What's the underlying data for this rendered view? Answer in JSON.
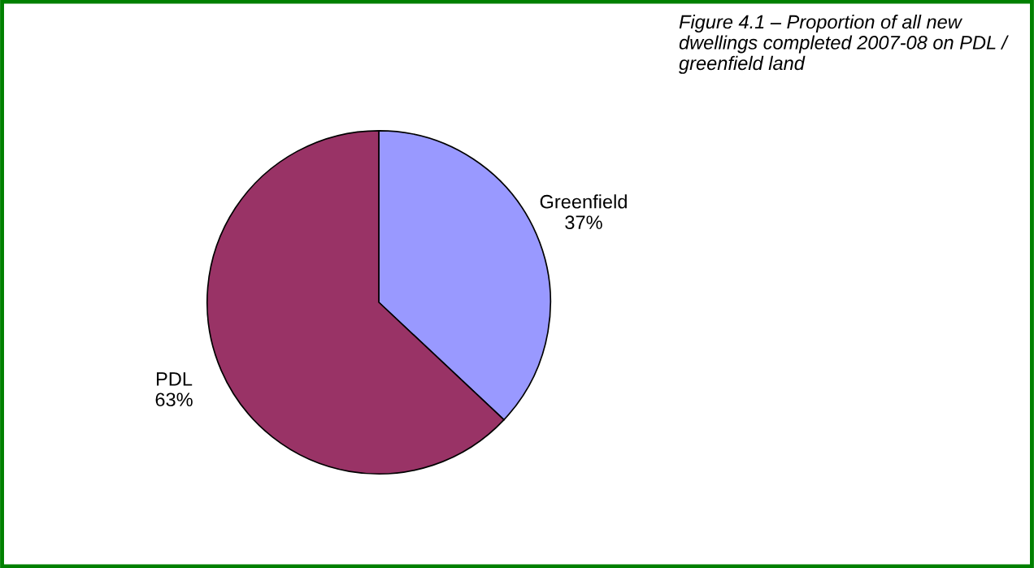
{
  "chart_data": {
    "type": "pie",
    "title": "Figure 4.1 – Proportion of all new dwellings completed 2007-08 on PDL / greenfield land",
    "categories": [
      "Greenfield",
      "PDL"
    ],
    "values": [
      37,
      63
    ],
    "value_labels": [
      "37%",
      "63%"
    ],
    "colors": [
      "#9999ff",
      "#993366"
    ]
  }
}
